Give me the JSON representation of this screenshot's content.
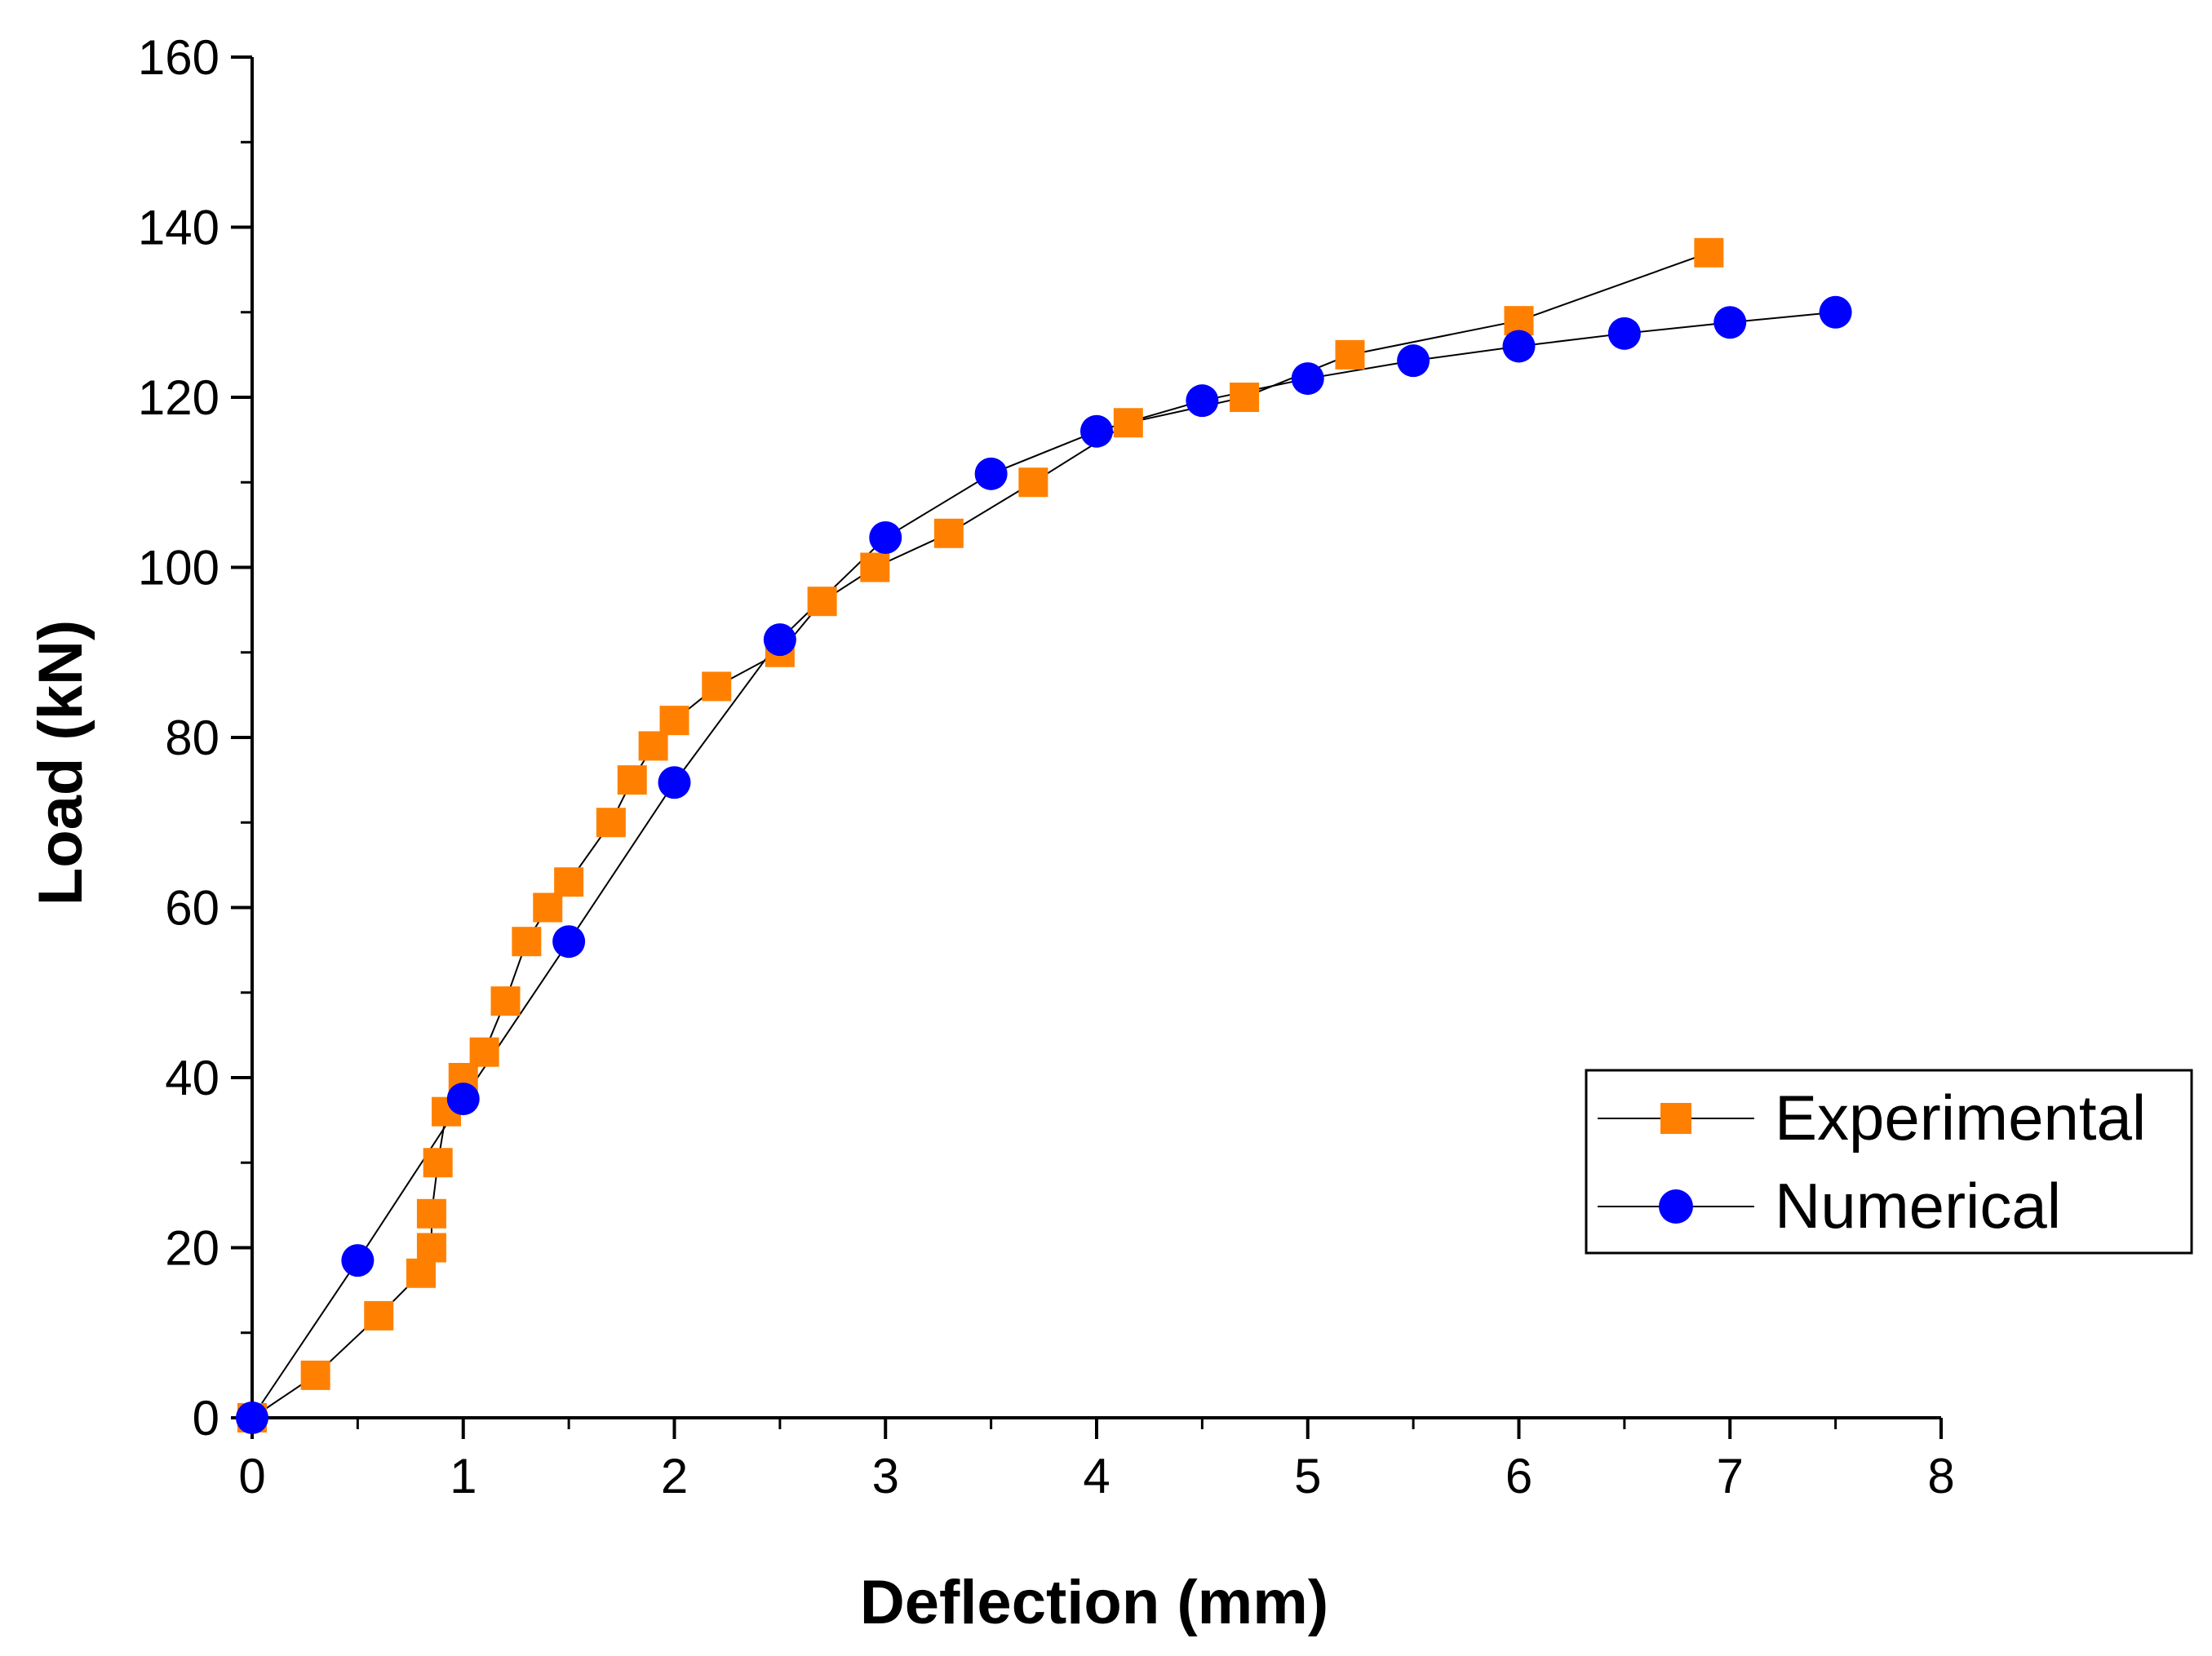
{
  "chart_data": {
    "type": "line",
    "xlabel": "Deflection (mm)",
    "ylabel": "Load (kN)",
    "xlim": [
      0,
      8
    ],
    "ylim": [
      0,
      160
    ],
    "xticks": [
      0,
      1,
      2,
      3,
      4,
      5,
      6,
      7,
      8
    ],
    "yticks": [
      0,
      20,
      40,
      60,
      80,
      100,
      120,
      140,
      160
    ],
    "x_minor_step": 0.5,
    "y_minor_step": 10,
    "grid": false,
    "legend_position": "bottom-right",
    "series": [
      {
        "name": "Experimental",
        "marker": "square",
        "color": "#FF8000",
        "x": [
          0,
          0.3,
          0.6,
          0.8,
          0.85,
          0.85,
          0.88,
          0.92,
          1.0,
          1.1,
          1.2,
          1.3,
          1.4,
          1.5,
          1.7,
          1.8,
          1.9,
          2.0,
          2.2,
          2.5,
          2.7,
          2.95,
          3.3,
          3.7,
          4.15,
          4.7,
          5.2,
          6.0,
          6.9
        ],
        "y": [
          0,
          5,
          12,
          17,
          20,
          24,
          30,
          36,
          40,
          43,
          49,
          56,
          60,
          63,
          70,
          75,
          79,
          82,
          86,
          90,
          96,
          100,
          104,
          110,
          117,
          120,
          125,
          129,
          137
        ]
      },
      {
        "name": "Numerical",
        "marker": "circle",
        "color": "#0000FF",
        "x": [
          0,
          0.5,
          1.0,
          1.5,
          2.0,
          2.5,
          3.0,
          3.5,
          4.0,
          4.5,
          5.0,
          5.5,
          6.0,
          6.5,
          7.0,
          7.5
        ],
        "y": [
          0,
          18.5,
          37.5,
          56,
          74.7,
          91.5,
          103.5,
          111,
          116,
          119.6,
          122.2,
          124.3,
          126,
          127.5,
          128.8,
          130
        ]
      }
    ]
  }
}
